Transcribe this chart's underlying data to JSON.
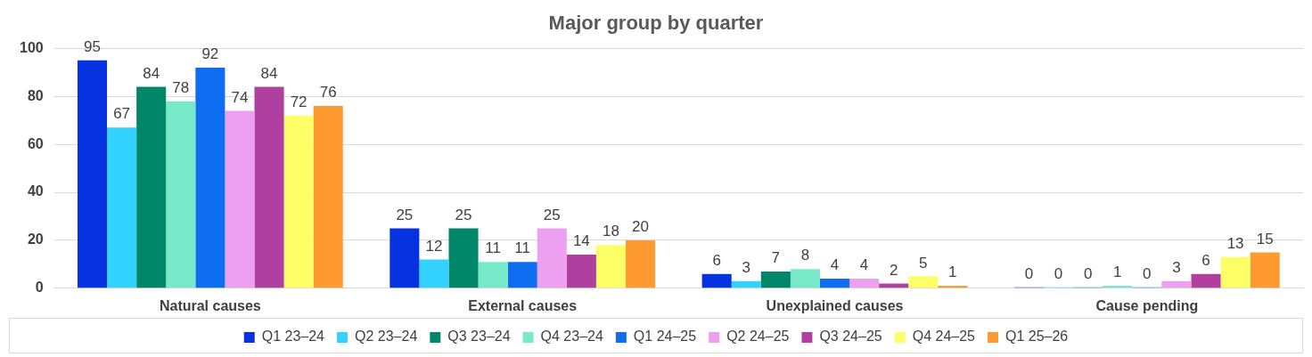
{
  "chart_data": {
    "type": "bar",
    "title": "Major group by quarter",
    "categories": [
      "Natural causes",
      "External causes",
      "Unexplained causes",
      "Cause pending"
    ],
    "series": [
      {
        "name": "Q1 23–24",
        "color": "#0632e0",
        "values": [
          95,
          25,
          6,
          0
        ]
      },
      {
        "name": "Q2 23–24",
        "color": "#33d1ff",
        "values": [
          67,
          12,
          3,
          0
        ]
      },
      {
        "name": "Q3 23–24",
        "color": "#00876a",
        "values": [
          84,
          25,
          7,
          0
        ]
      },
      {
        "name": "Q4 23–24",
        "color": "#77e8c8",
        "values": [
          78,
          11,
          8,
          1
        ]
      },
      {
        "name": "Q1 24–25",
        "color": "#0f6ef0",
        "values": [
          92,
          11,
          4,
          0
        ]
      },
      {
        "name": "Q2 24–25",
        "color": "#eda0f0",
        "values": [
          74,
          25,
          4,
          3
        ]
      },
      {
        "name": "Q3 24–25",
        "color": "#b0409f",
        "values": [
          84,
          14,
          2,
          6
        ]
      },
      {
        "name": "Q4 24–25",
        "color": "#fcff66",
        "values": [
          72,
          18,
          5,
          13
        ]
      },
      {
        "name": "Q1 25–26",
        "color": "#ff9a30",
        "values": [
          76,
          20,
          1,
          15
        ]
      }
    ],
    "ylim": [
      0,
      100
    ],
    "yticks": [
      0,
      20,
      40,
      60,
      80,
      100
    ],
    "grid": "y",
    "legend": "bottom",
    "data_labels": true
  }
}
